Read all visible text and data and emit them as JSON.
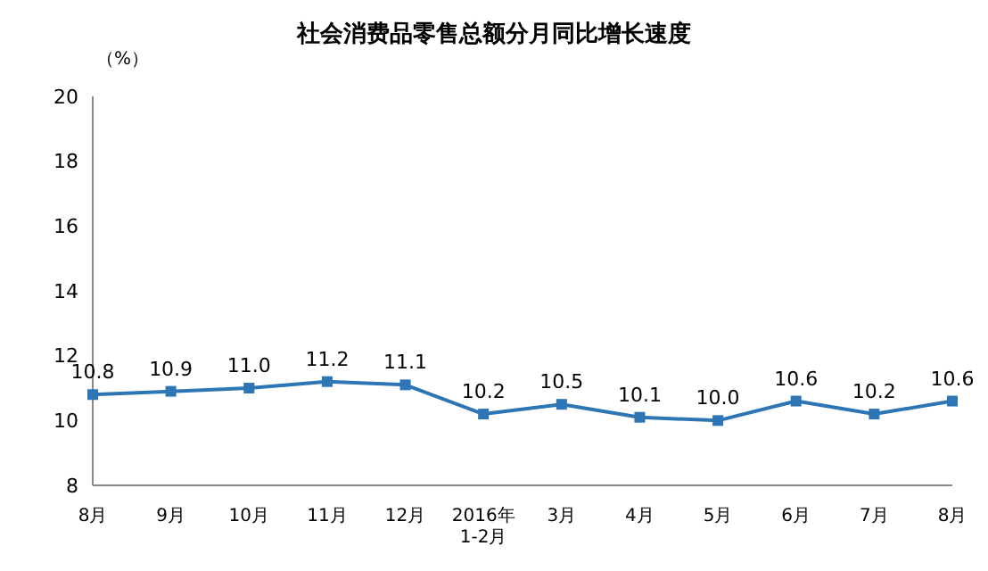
{
  "chart_data": {
    "type": "line",
    "title": "社会消费品零售总额分月同比增长速度",
    "ylabel": "（%）",
    "categories": [
      "8月",
      "9月",
      "10月",
      "11月",
      "12月",
      "2016年\n1-2月",
      "3月",
      "4月",
      "5月",
      "6月",
      "7月",
      "8月"
    ],
    "series": [
      {
        "color": "#2e75b6",
        "values": [
          10.8,
          10.9,
          11.0,
          11.2,
          11.1,
          10.2,
          10.5,
          10.1,
          10.0,
          10.6,
          10.2,
          10.6
        ],
        "value_labels": [
          "10.8",
          "10.9",
          "11.0",
          "11.2",
          "11.1",
          "10.2",
          "10.5",
          "10.1",
          "10.0",
          "10.6",
          "10.2",
          "10.6"
        ]
      }
    ],
    "ylim": [
      8,
      20
    ],
    "yticks": [
      8,
      10,
      12,
      14,
      16,
      18,
      20
    ],
    "grid": false,
    "legend": false,
    "marker": "square",
    "line_style": "solid"
  }
}
